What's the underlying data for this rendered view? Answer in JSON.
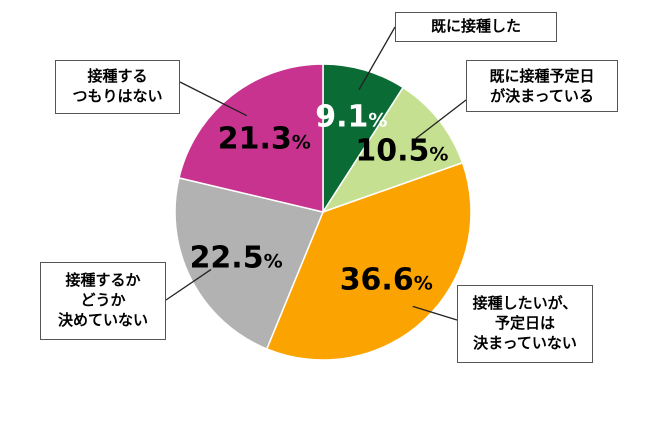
{
  "chart_data": {
    "type": "pie",
    "start_angle_deg": 0,
    "direction": "clockwise",
    "slices": [
      {
        "label_lines": [
          "既に接種した"
        ],
        "value": 9.1,
        "display": "9.1",
        "color": "#0a6b34",
        "text_color": "#ffffff"
      },
      {
        "label_lines": [
          "既に接種予定日",
          "が決まっている"
        ],
        "value": 10.5,
        "display": "10.5",
        "color": "#c6e091",
        "text_color": "#000000"
      },
      {
        "label_lines": [
          "接種したいが、",
          "予定日は",
          "決まっていない"
        ],
        "value": 36.6,
        "display": "36.6",
        "color": "#fba300",
        "text_color": "#000000"
      },
      {
        "label_lines": [
          "接種するか",
          "どうか",
          "決めていない"
        ],
        "value": 22.5,
        "display": "22.5",
        "color": "#b2b2b2",
        "text_color": "#000000"
      },
      {
        "label_lines": [
          "接種する",
          "つもりはない"
        ],
        "value": 21.3,
        "display": "21.3",
        "color": "#c7338e",
        "text_color": "#000000"
      }
    ],
    "unit": "%"
  }
}
